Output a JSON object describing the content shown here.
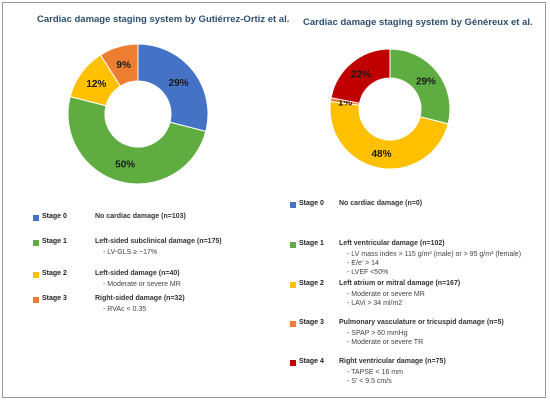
{
  "left": {
    "title": "Cardiac damage staging system by Gutiérrez-Ortiz et al.",
    "legend": [
      {
        "stage": "Stage 0",
        "desc": "No cardiac damage (n=103)",
        "details": [],
        "color": "#4472c4"
      },
      {
        "stage": "Stage 1",
        "desc": "Left-sided subclinical damage (n=175)",
        "details": [
          "- LV-GLS ≥ −17%"
        ],
        "color": "#5fad41"
      },
      {
        "stage": "Stage 2",
        "desc": "Left-sided damage (n=40)",
        "details": [
          "- Moderate or severe MR"
        ],
        "color": "#ffc000"
      },
      {
        "stage": "Stage 3",
        "desc": "Right-sided damage (n=32)",
        "details": [
          "- RVAc < 0.35"
        ],
        "color": "#ed7d31"
      }
    ]
  },
  "right": {
    "title": "Cardiac damage staging system by Généreux et al.",
    "legend": [
      {
        "stage": "Stage 0",
        "desc": "No cardiac damage (n=0)",
        "details": [],
        "color": "#4472c4"
      },
      {
        "stage": "Stage 1",
        "desc": "Left ventricular  damage (n=102)",
        "details": [
          "- LV mass index > 115 g/m² (male) or > 95 g/m² (female)",
          "- E/e' > 14",
          "- LVEF <50%"
        ],
        "color": "#5fad41"
      },
      {
        "stage": "Stage 2",
        "desc": "Left atrium or mitral damage (n=167)",
        "details": [
          "- Moderate or severe MR",
          "- LAVi > 34 ml/m2"
        ],
        "color": "#ffc000"
      },
      {
        "stage": "Stage 3",
        "desc": "Pulmonary vasculature or tricuspid damage (n=5)",
        "details": [
          "- SPAP > 60 mmHg",
          "- Moderate or severe TR"
        ],
        "color": "#ed7d31"
      },
      {
        "stage": "Stage 4",
        "desc": "Right ventricular damage (n=75)",
        "details": [
          "- TAPSE < 16 mm",
          "- S' < 9.5 cm/s"
        ],
        "color": "#c00000"
      }
    ]
  },
  "chart_data": [
    {
      "type": "pie",
      "title": "Cardiac damage staging system by Gutiérrez-Ortiz et al.",
      "categories": [
        "Stage 0",
        "Stage 1",
        "Stage 2",
        "Stage 3"
      ],
      "values": [
        29,
        50,
        12,
        9
      ],
      "labels": [
        "29%",
        "50%",
        "12%",
        "9%"
      ],
      "colors": [
        "#4472c4",
        "#5fad41",
        "#ffc000",
        "#ed7d31"
      ]
    },
    {
      "type": "pie",
      "title": "Cardiac damage staging system by Généreux et al.",
      "categories": [
        "Stage 1",
        "Stage 2",
        "Stage 3",
        "Stage 4"
      ],
      "values": [
        29,
        48,
        1,
        22
      ],
      "labels": [
        "29%",
        "48%",
        "1%",
        "22%"
      ],
      "colors": [
        "#5fad41",
        "#ffc000",
        "#ed7d31",
        "#c00000"
      ]
    }
  ]
}
